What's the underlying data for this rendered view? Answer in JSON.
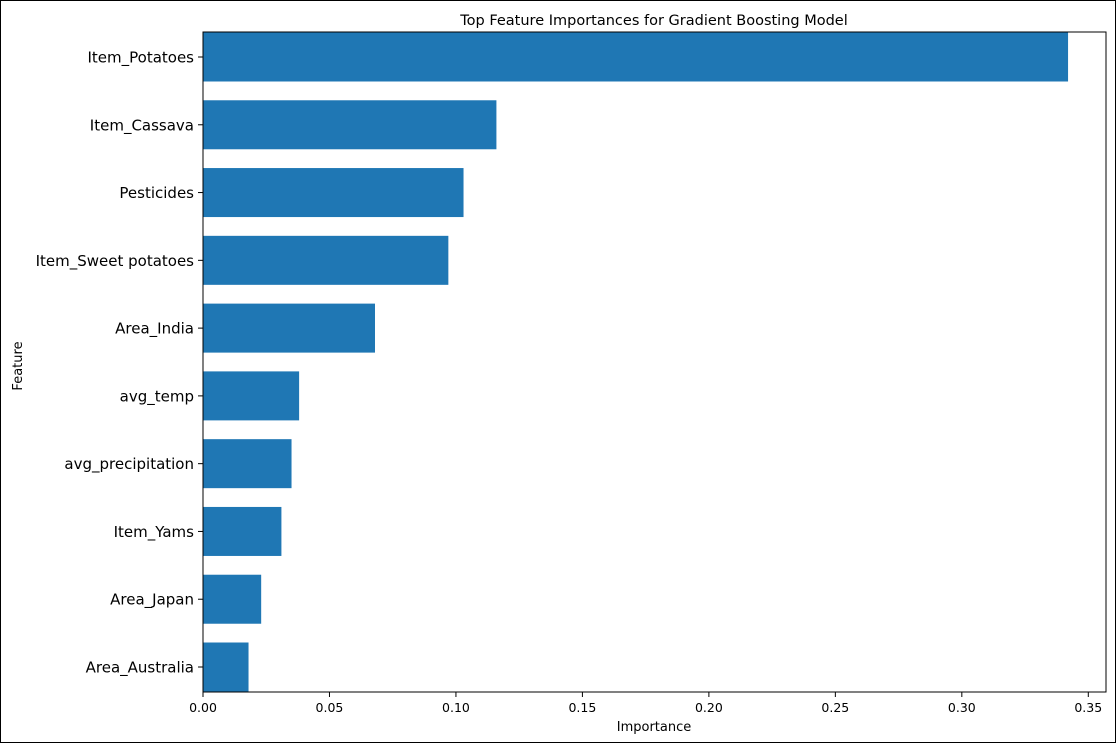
{
  "chart_data": {
    "type": "bar",
    "orientation": "horizontal",
    "title": "Top Feature Importances for Gradient Boosting Model",
    "xlabel": "Importance",
    "ylabel": "Feature",
    "categories": [
      "Item_Potatoes",
      "Item_Cassava",
      "Pesticides",
      "Item_Sweet potatoes",
      "Area_India",
      "avg_temp",
      "avg_precipitation",
      "Item_Yams",
      "Area_Japan",
      "Area_Australia"
    ],
    "values": [
      0.342,
      0.116,
      0.103,
      0.097,
      0.068,
      0.038,
      0.035,
      0.031,
      0.023,
      0.018
    ],
    "xlim": [
      0,
      0.357
    ],
    "xticks": [
      0.0,
      0.05,
      0.1,
      0.15,
      0.2,
      0.25,
      0.3,
      0.35
    ],
    "xtick_labels": [
      "0.00",
      "0.05",
      "0.10",
      "0.15",
      "0.20",
      "0.25",
      "0.30",
      "0.35"
    ],
    "bar_color": "#1f77b4",
    "grid": false,
    "legend": "none"
  }
}
